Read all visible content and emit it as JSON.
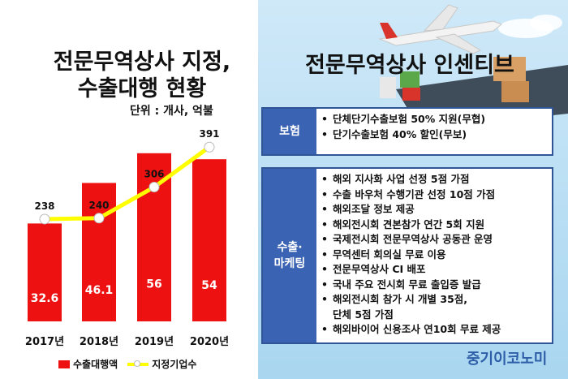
{
  "left_title_line1": "전문무역상사 지정,",
  "left_title_line2": "수출대행 현황",
  "unit": "단위 : 개사, 억불",
  "right_title": "전문무역상사 인센티브",
  "chart_data": {
    "type": "bar",
    "categories": [
      "2017년",
      "2018년",
      "2019년",
      "2020년"
    ],
    "series": [
      {
        "name": "수출대행액",
        "type": "bar",
        "values": [
          32.6,
          46.1,
          56,
          54
        ],
        "color": "#ee1111"
      },
      {
        "name": "지정기업수",
        "type": "line",
        "values": [
          238,
          240,
          306,
          391
        ],
        "color": "#ffff00"
      }
    ],
    "legend_position": "bottom"
  },
  "legend": {
    "bar_label": "수출대행액",
    "line_label": "지정기업수"
  },
  "incentives": [
    {
      "category": "보험",
      "items": [
        "단체단기수출보험 50% 지원(무협)",
        "단기수출보험 40% 할인(무보)"
      ]
    },
    {
      "category": "수출·\n마케팅",
      "items": [
        "해외 지사화 사업 선정 5점 가점",
        "수출 바우처 수행기관 선정 10점 가점",
        "해외조달 정보 제공",
        "해외전시회 견본참가 연간 5회 지원",
        "국제전시회 전문무역상사 공동관 운영",
        "무역센터 회의실 무료 이용",
        "전문무역상사 CI 배포",
        "국내 주요 전시회 무료 출입증 발급",
        "해외전시회 참가 시 개별 35점,\n단체 5점 가점",
        "해외바이어 신용조사 연10회 무료 제공"
      ]
    }
  ],
  "logo": "중기이코노미"
}
